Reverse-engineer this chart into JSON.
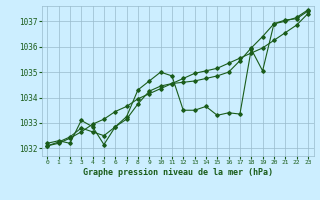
{
  "background_color": "#cceeff",
  "grid_color": "#99bbcc",
  "line_color": "#1a5c1a",
  "title": "Graphe pression niveau de la mer (hPa)",
  "xlim": [
    -0.5,
    23.5
  ],
  "ylim": [
    1031.7,
    1037.6
  ],
  "yticks": [
    1032,
    1033,
    1034,
    1035,
    1036,
    1037
  ],
  "xticks": [
    0,
    1,
    2,
    3,
    4,
    5,
    6,
    7,
    8,
    9,
    10,
    11,
    12,
    13,
    14,
    15,
    16,
    17,
    18,
    19,
    20,
    21,
    22,
    23
  ],
  "series1": [
    1032.2,
    1032.3,
    1032.2,
    1033.1,
    1032.85,
    1032.15,
    1032.85,
    1033.25,
    1034.3,
    1034.65,
    1035.0,
    1034.85,
    1033.5,
    1033.5,
    1033.65,
    1033.3,
    1033.4,
    1033.35,
    1035.9,
    1035.05,
    1036.9,
    1037.0,
    1037.15,
    1037.45
  ],
  "series2": [
    1032.1,
    1032.25,
    1032.45,
    1032.8,
    1032.65,
    1032.5,
    1032.85,
    1033.15,
    1033.75,
    1034.25,
    1034.45,
    1034.55,
    1034.6,
    1034.65,
    1034.75,
    1034.85,
    1035.0,
    1035.45,
    1035.95,
    1036.4,
    1036.9,
    1037.05,
    1037.1,
    1037.4
  ],
  "series3": [
    1032.1,
    1032.2,
    1032.4,
    1032.65,
    1032.95,
    1033.15,
    1033.45,
    1033.65,
    1033.95,
    1034.15,
    1034.35,
    1034.55,
    1034.75,
    1034.95,
    1035.05,
    1035.15,
    1035.35,
    1035.55,
    1035.75,
    1035.95,
    1036.25,
    1036.55,
    1036.85,
    1037.3
  ]
}
